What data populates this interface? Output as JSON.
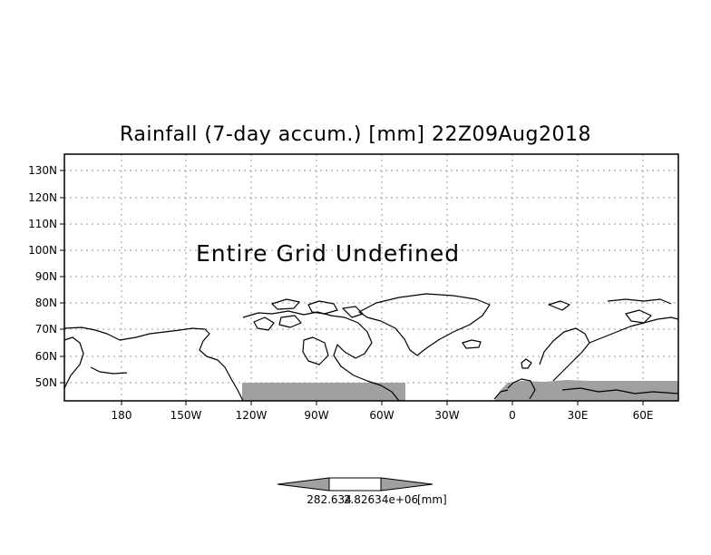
{
  "map": {
    "title": "Rainfall (7-day accum.) [mm] 22Z09Aug2018",
    "message": "Entire Grid Undefined",
    "lat_labels": [
      "130N",
      "120N",
      "110N",
      "100N",
      "90N",
      "80N",
      "70N",
      "60N",
      "50N"
    ],
    "lon_labels": [
      "180",
      "150W",
      "120W",
      "90W",
      "60W",
      "30W",
      "0",
      "30E",
      "60E"
    ],
    "undefined_fill_color": "#a0a0a0",
    "grid_line_style": "dotted"
  },
  "colorbar": {
    "left_label": "282.634",
    "middle_label": "2.82634e+06",
    "unit_label": "[mm]",
    "fill_color": "#a0a0a0"
  }
}
